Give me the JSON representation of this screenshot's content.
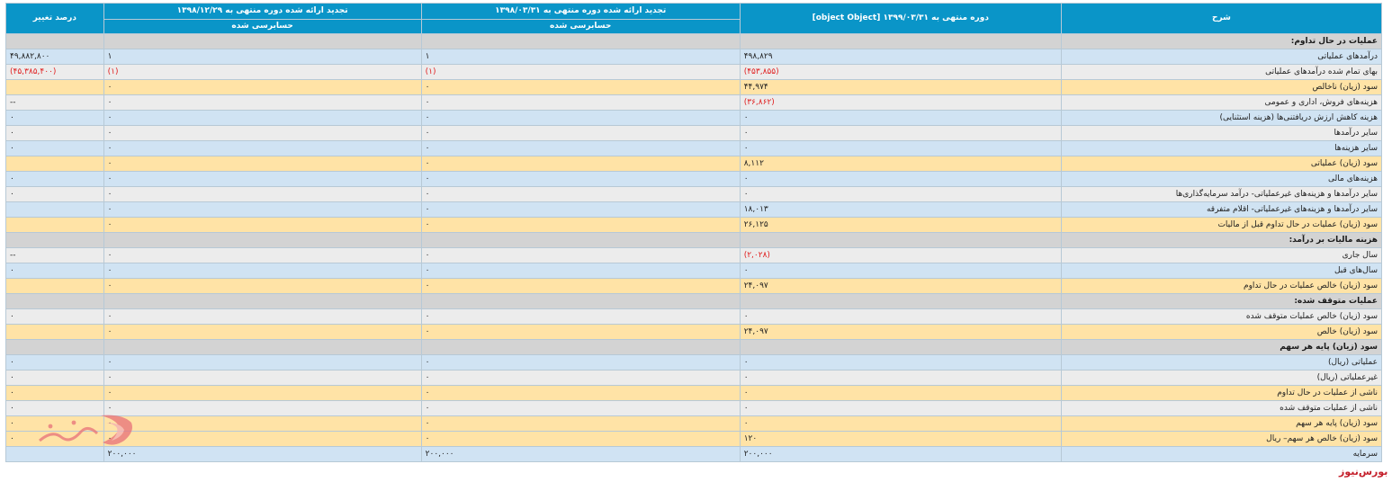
{
  "columns": {
    "desc": "شرح",
    "period_1399": "دوره منتهی به ۱۳۹۹/۰۳/۳۱ [object Object]",
    "restated_1398_03": "تجدید ارائه شده دوره منتهی به ۱۳۹۸/۰۳/۳۱",
    "restated_1398_12": "تجدید ارائه شده دوره منتهی به ۱۳۹۸/۱۲/۲۹",
    "change": "درصد تغییر",
    "audited_1398_03": "حسابرسی شده",
    "audited_1398_12": "حسابرسی شده"
  },
  "rows": [
    {
      "type": "hdr",
      "label": "عملیات در حال تداوم:",
      "v1": "",
      "v2": "",
      "v3": "",
      "v4": ""
    },
    {
      "type": "blue",
      "label": "درآمدهای عملیاتی",
      "v1": "۴۹۸,۸۲۹",
      "v2": "۱",
      "v3": "۱",
      "v4": "۴۹,۸۸۲,۸۰۰"
    },
    {
      "type": "grey",
      "label": "بهای تمام شده درآمدهای عملیاتی",
      "v1": "(۴۵۳,۸۵۵)",
      "v2": "(۱)",
      "v3": "(۱)",
      "v4": "(۴۵,۳۸۵,۴۰۰)"
    },
    {
      "type": "orange",
      "label": "سود (زیان) ناخالص",
      "v1": "۴۴,۹۷۴",
      "v2": "۰",
      "v3": "۰",
      "v4": ""
    },
    {
      "type": "grey",
      "label": "هزینه‌های فروش، اداری و عمومی",
      "v1": "(۳۶,۸۶۲)",
      "v2": "۰",
      "v3": "۰",
      "v4": "--"
    },
    {
      "type": "blue",
      "label": "هزینه کاهش ارزش دریافتنی‌ها (هزینه استثنایی)",
      "v1": "۰",
      "v2": "۰",
      "v3": "۰",
      "v4": "۰"
    },
    {
      "type": "grey",
      "label": "سایر درآمدها",
      "v1": "۰",
      "v2": "۰",
      "v3": "۰",
      "v4": "۰"
    },
    {
      "type": "blue",
      "label": "سایر هزینه‌ها",
      "v1": "۰",
      "v2": "۰",
      "v3": "۰",
      "v4": "۰"
    },
    {
      "type": "orange",
      "label": "سود (زیان) عملیاتی",
      "v1": "۸,۱۱۲",
      "v2": "۰",
      "v3": "۰",
      "v4": ""
    },
    {
      "type": "blue",
      "label": "هزینه‌های مالی",
      "v1": "۰",
      "v2": "۰",
      "v3": "۰",
      "v4": "۰"
    },
    {
      "type": "grey",
      "label": "سایر درآمدها و هزینه‌های غیرعملیاتی- درآمد سرمایه‌گذاری‌ها",
      "v1": "۰",
      "v2": "۰",
      "v3": "۰",
      "v4": "۰"
    },
    {
      "type": "blue",
      "label": "سایر درآمدها و هزینه‌های غیرعملیاتی- اقلام متفرقه",
      "v1": "۱۸,۰۱۳",
      "v2": "۰",
      "v3": "۰",
      "v4": ""
    },
    {
      "type": "orange",
      "label": "سود (زیان) عملیات در حال تداوم قبل از مالیات",
      "v1": "۲۶,۱۲۵",
      "v2": "۰",
      "v3": "۰",
      "v4": ""
    },
    {
      "type": "hdr",
      "label": "هزینه مالیات بر درآمد:",
      "v1": "",
      "v2": "",
      "v3": "",
      "v4": ""
    },
    {
      "type": "grey",
      "label": "سال جاری",
      "v1": "(۲,۰۲۸)",
      "v2": "۰",
      "v3": "۰",
      "v4": "--"
    },
    {
      "type": "blue",
      "label": "سال‌های قبل",
      "v1": "۰",
      "v2": "۰",
      "v3": "۰",
      "v4": "۰"
    },
    {
      "type": "orange",
      "label": "سود (زیان) خالص عملیات در حال تداوم",
      "v1": "۲۴,۰۹۷",
      "v2": "۰",
      "v3": "۰",
      "v4": ""
    },
    {
      "type": "hdr",
      "label": "عملیات متوقف شده:",
      "v1": "",
      "v2": "",
      "v3": "",
      "v4": ""
    },
    {
      "type": "grey",
      "label": "سود (زیان) خالص عملیات متوقف شده",
      "v1": "۰",
      "v2": "۰",
      "v3": "۰",
      "v4": "۰"
    },
    {
      "type": "orange",
      "label": "سود (زیان) خالص",
      "v1": "۲۴,۰۹۷",
      "v2": "۰",
      "v3": "۰",
      "v4": ""
    },
    {
      "type": "hdr",
      "label": "سود (زیان) پایه هر سهم",
      "v1": "",
      "v2": "",
      "v3": "",
      "v4": ""
    },
    {
      "type": "blue",
      "label": "عملیاتی (ریال)",
      "v1": "۰",
      "v2": "۰",
      "v3": "۰",
      "v4": "۰"
    },
    {
      "type": "grey",
      "label": "غیرعملیاتی (ریال)",
      "v1": "۰",
      "v2": "۰",
      "v3": "۰",
      "v4": "۰"
    },
    {
      "type": "orange",
      "label": "ناشی از عملیات در حال تداوم",
      "v1": "۰",
      "v2": "۰",
      "v3": "۰",
      "v4": "۰"
    },
    {
      "type": "grey",
      "label": "ناشی از عملیات متوقف شده",
      "v1": "۰",
      "v2": "۰",
      "v3": "۰",
      "v4": "۰"
    },
    {
      "type": "orange",
      "label": "سود (زیان) پایه هر سهم",
      "v1": "۰",
      "v2": "۰",
      "v3": "۰",
      "v4": "۰"
    },
    {
      "type": "orange",
      "label": "سود (زیان) خالص هر سهم– ریال",
      "v1": "۱۲۰",
      "v2": "۰",
      "v3": "۰",
      "v4": "۰"
    },
    {
      "type": "blue",
      "label": "سرمایه",
      "v1": "۲۰۰,۰۰۰",
      "v2": "۲۰۰,۰۰۰",
      "v3": "۲۰۰,۰۰۰",
      "v4": ""
    }
  ],
  "brand": {
    "text": "بورس‌نیوز",
    "color": "#c41e2a"
  }
}
